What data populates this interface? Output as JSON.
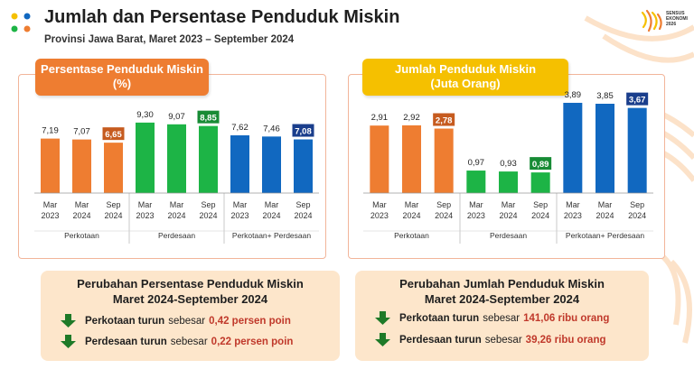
{
  "header": {
    "title": "Jumlah dan Persentase Penduduk Miskin",
    "subtitle": "Provinsi Jawa Barat, Maret 2023 – September  2024",
    "brand_text": "SENSUS EKONOMI 2026"
  },
  "colors": {
    "orange": "#ee7d31",
    "green": "#1db446",
    "blue": "#1168c0",
    "yellow": "#f5c000",
    "orange_dark": "#c65b1f",
    "green_dark": "#178b35",
    "blue_dark": "#1a3e8c",
    "red_text": "#c0392b",
    "arrow_green": "#1e7a28"
  },
  "chart_data": [
    {
      "type": "bar",
      "title": "Persentase Penduduk Miskin (%)",
      "title_lines": [
        "Persentase Penduduk Miskin",
        "(%)"
      ],
      "categories": [
        "Mar 2023",
        "Mar 2024",
        "Sep 2024"
      ],
      "category_lines": [
        [
          "Mar",
          "2023"
        ],
        [
          "Mar",
          "2024"
        ],
        [
          "Sep",
          "2024"
        ]
      ],
      "groups": [
        "Perkotaan",
        "Perdesaan",
        "Perkotaan+ Perdesaan"
      ],
      "series": [
        {
          "name": "Perkotaan",
          "values": [
            7.19,
            7.07,
            6.65
          ],
          "labels": [
            "7,19",
            "7,07",
            "6,65"
          ]
        },
        {
          "name": "Perdesaan",
          "values": [
            9.3,
            9.07,
            8.85
          ],
          "labels": [
            "9,30",
            "9,07",
            "8,85"
          ]
        },
        {
          "name": "Perkotaan+ Perdesaan",
          "values": [
            7.62,
            7.46,
            7.08
          ],
          "labels": [
            "7,62",
            "7,46",
            "7,08"
          ]
        }
      ],
      "highlight_last": true,
      "ylim": [
        0,
        10
      ]
    },
    {
      "type": "bar",
      "title": "Jumlah Penduduk Miskin (Juta Orang)",
      "title_lines": [
        "Jumlah Penduduk Miskin",
        "(Juta Orang)"
      ],
      "categories": [
        "Mar 2023",
        "Mar 2024",
        "Sep 2024"
      ],
      "category_lines": [
        [
          "Mar",
          "2023"
        ],
        [
          "Mar",
          "2024"
        ],
        [
          "Sep",
          "2024"
        ]
      ],
      "groups": [
        "Perkotaan",
        "Perdesaan",
        "Perkotaan+ Perdesaan"
      ],
      "series": [
        {
          "name": "Perkotaan",
          "values": [
            2.91,
            2.92,
            2.78
          ],
          "labels": [
            "2,91",
            "2,92",
            "2,78"
          ]
        },
        {
          "name": "Perdesaan",
          "values": [
            0.97,
            0.93,
            0.89
          ],
          "labels": [
            "0,97",
            "0,93",
            "0,89"
          ]
        },
        {
          "name": "Perkotaan+ Perdesaan",
          "values": [
            3.89,
            3.85,
            3.67
          ],
          "labels": [
            "3,89",
            "3,85",
            "3,67"
          ]
        }
      ],
      "highlight_last": true,
      "ylim": [
        0,
        4.2
      ]
    }
  ],
  "summary_left": {
    "title_line1": "Perubahan Persentase Penduduk Miskin",
    "title_line2": "Maret 2024-September 2024",
    "items": [
      {
        "region": "Perkotaan turun",
        "connector": "sebesar",
        "value": "0,42 persen poin"
      },
      {
        "region": "Perdesaan turun",
        "connector": "sebesar",
        "value": "0,22 persen poin"
      }
    ]
  },
  "summary_right": {
    "title_line1": "Perubahan Jumlah Penduduk Miskin",
    "title_line2": "Maret 2024-September 2024",
    "items": [
      {
        "region": "Perkotaan turun",
        "connector": "sebesar",
        "value": "141,06 ribu orang"
      },
      {
        "region": "Perdesaan turun",
        "connector": "sebesar",
        "value": "39,26 ribu orang"
      }
    ]
  }
}
